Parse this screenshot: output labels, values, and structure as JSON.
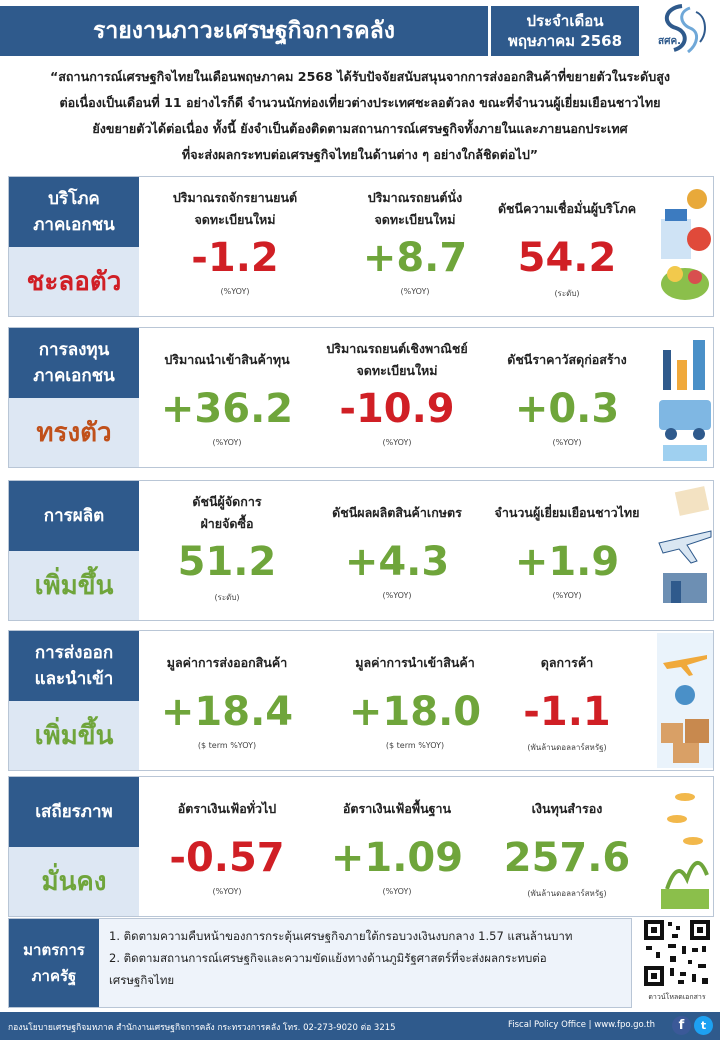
{
  "header": {
    "title": "รายงานภาวะเศรษฐกิจการคลัง",
    "month_label": "ประจำเดือน",
    "month_value": "พฤษภาคม 2568",
    "logo_text": "สศค."
  },
  "summary": [
    "“สถานการณ์เศรษฐกิจไทยในเดือนพฤษภาคม 2568 ได้รับปัจจัยสนับสนุนจากการส่งออกสินค้าที่ขยายตัวในระดับสูง",
    "ต่อเนื่องเป็นเดือนที่ 11 อย่างไรก็ดี จำนวนนักท่องเที่ยวต่างประเทศชะลอตัวลง ขณะที่จำนวนผู้เยี่ยมเยือนชาวไทย",
    "ยังขยายตัวได้ต่อเนื่อง ทั้งนี้ ยังจำเป็นต้องติดตามสถานการณ์เศรษฐกิจทั้งภายในและภายนอกประเทศ",
    "ที่จะส่งผลกระทบต่อเศรษฐกิจไทยในด้านต่าง ๆ อย่างใกล้ชิดต่อไป”"
  ],
  "sections": [
    {
      "label_line1": "บริโภค",
      "label_line2": "ภาคเอกชน",
      "status": "ชะลอตัว",
      "metrics": [
        {
          "label_line1": "ปริมาณรถจักรยานยนต์",
          "label_line2": "จดทะเบียนใหม่",
          "value": "-1.2",
          "unit": "(%YOY)"
        },
        {
          "label_line1": "ปริมาณรถยนต์นั่ง",
          "label_line2": "จดทะเบียนใหม่",
          "value": "+8.7",
          "unit": "(%YOY)"
        },
        {
          "label_line1": "ดัชนีความเชื่อมั่นผู้บริโภค",
          "label_line2": "",
          "value": "54.2",
          "unit": "(ระดับ)"
        }
      ]
    },
    {
      "label_line1": "การลงทุน",
      "label_line2": "ภาคเอกชน",
      "status": "ทรงตัว",
      "metrics": [
        {
          "label_line1": "ปริมาณนำเข้าสินค้าทุน",
          "label_line2": "",
          "value": "+36.2",
          "unit": "(%YOY)"
        },
        {
          "label_line1": "ปริมาณรถยนต์เชิงพาณิชย์",
          "label_line2": "จดทะเบียนใหม่",
          "value": "-10.9",
          "unit": "(%YOY)"
        },
        {
          "label_line1": "ดัชนีราคาวัสดุก่อสร้าง",
          "label_line2": "",
          "value": "+0.3",
          "unit": "(%YOY)"
        }
      ]
    },
    {
      "label_line1": "การผลิต",
      "label_line2": "",
      "status": "เพิ่มขึ้น",
      "metrics": [
        {
          "label_line1": "ดัชนีผู้จัดการ",
          "label_line2": "ฝ่ายจัดซื้อ",
          "value": "51.2",
          "unit": "(ระดับ)"
        },
        {
          "label_line1": "ดัชนีผลผลิตสินค้าเกษตร",
          "label_line2": "",
          "value": "+4.3",
          "unit": "(%YOY)"
        },
        {
          "label_line1": "จำนวนผู้เยี่ยมเยือนชาวไทย",
          "label_line2": "",
          "value": "+1.9",
          "unit": "(%YOY)"
        }
      ]
    },
    {
      "label_line1": "การส่งออก",
      "label_line2": "และนำเข้า",
      "status": "เพิ่มขึ้น",
      "metrics": [
        {
          "label_line1": "มูลค่าการส่งออกสินค้า",
          "label_line2": "",
          "value": "+18.4",
          "unit": "($ term %YOY)"
        },
        {
          "label_line1": "มูลค่าการนำเข้าสินค้า",
          "label_line2": "",
          "value": "+18.0",
          "unit": "($ term %YOY)"
        },
        {
          "label_line1": "ดุลการค้า",
          "label_line2": "",
          "value": "-1.1",
          "unit": "(พันล้านดอลลาร์สหรัฐ)"
        }
      ]
    },
    {
      "label_line1": "เสถียรภาพ",
      "label_line2": "",
      "status": "มั่นคง",
      "metrics": [
        {
          "label_line1": "อัตราเงินเฟ้อทั่วไป",
          "label_line2": "",
          "value": "-0.57",
          "unit": "(%YOY)"
        },
        {
          "label_line1": "อัตราเงินเฟ้อพื้นฐาน",
          "label_line2": "",
          "value": "+1.09",
          "unit": "(%YOY)"
        },
        {
          "label_line1": "เงินทุนสำรอง",
          "label_line2": "",
          "value": "257.6",
          "unit": "(พันล้านดอลลาร์สหรัฐ)"
        }
      ]
    }
  ],
  "policy": {
    "label_line1": "มาตรการ",
    "label_line2": "ภาครัฐ",
    "items": [
      "1. ติดตามความคืบหน้าของการกระตุ้นเศรษฐกิจภายใต้กรอบวงเงินงบกลาง 1.57 แสนล้านบาท",
      "2. ติดตามสถานการณ์เศรษฐกิจและความขัดแย้งทางด้านภูมิรัฐศาสตร์ที่จะส่งผลกระทบต่อ",
      "เศรษฐกิจไทย"
    ]
  },
  "qr_caption": "ดาวน์โหลดเอกสาร",
  "footer": {
    "left": "กองนโยบายเศรษฐกิจมหภาค สำนักงานเศรษฐกิจการคลัง กระทรวงการคลัง โทร. 02-273-9020 ต่อ 3215",
    "right": "Fiscal Policy Office | www.fpo.go.th",
    "fb": "f",
    "tw": "t"
  },
  "colors": {
    "primary": "#2f5a8c",
    "status_bg": "#dde7f3",
    "negative": "#d01f25",
    "positive": "#6fa53b",
    "neutral_status": "#c0501a"
  }
}
